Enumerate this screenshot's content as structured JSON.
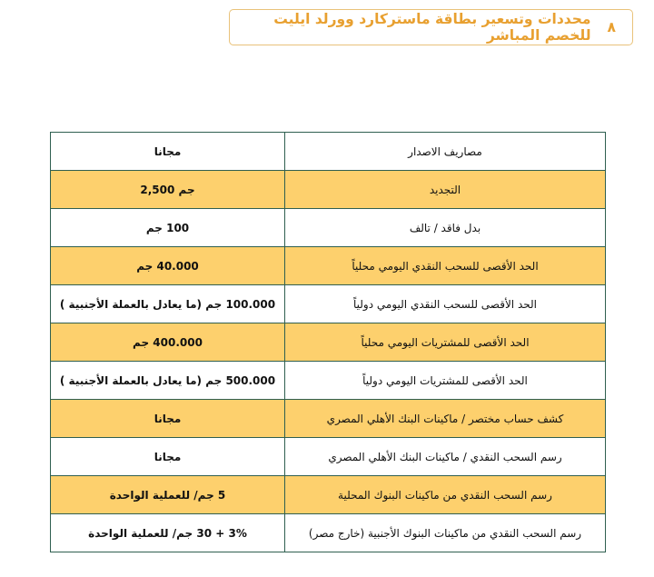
{
  "heading": {
    "number": "٨",
    "title": "محددات وتسعير بطاقة ماستركارد وورلد ايليت للخصم المباشر"
  },
  "colors": {
    "accent": "#e8a030",
    "row_highlight": "#fdd06d",
    "border": "#2f5f50"
  },
  "rows": [
    {
      "label": "مصاريف الاصدار",
      "value": "مجانا"
    },
    {
      "label": "التجديد",
      "value": "جم 2,500"
    },
    {
      "label": "بدل فاقد / تالف",
      "value": "100 جم"
    },
    {
      "label": "الحد الأقصى للسحب النقدي اليومي محلياً",
      "value": "40.000 جم"
    },
    {
      "label": "الحد الأقصى للسحب النقدي اليومي دولياً",
      "value": "100.000 جم (ما يعادل بالعملة الأجنبية )"
    },
    {
      "label": "الحد الأقصى للمشتريات اليومي محلياً",
      "value": "400.000 جم"
    },
    {
      "label": "الحد الأقصى للمشتريات اليومي دولياً",
      "value": "500.000 جم (ما يعادل بالعملة الأجنبية )"
    },
    {
      "label": "كشف حساب مختصر / ماكينات البنك الأهلي المصري",
      "value": "مجانا"
    },
    {
      "label": "رسم السحب النقدي / ماكينات البنك الأهلي المصري",
      "value": "مجانا"
    },
    {
      "label": "رسم السحب النقدي من ماكينات البنوك المحلية",
      "value": "5 جم/ للعملية الواحدة"
    },
    {
      "label": "رسم السحب النقدي من ماكينات البنوك الأجنبية (خارج مصر)",
      "value": "3% + 30 جم/ للعملية الواحدة"
    }
  ]
}
